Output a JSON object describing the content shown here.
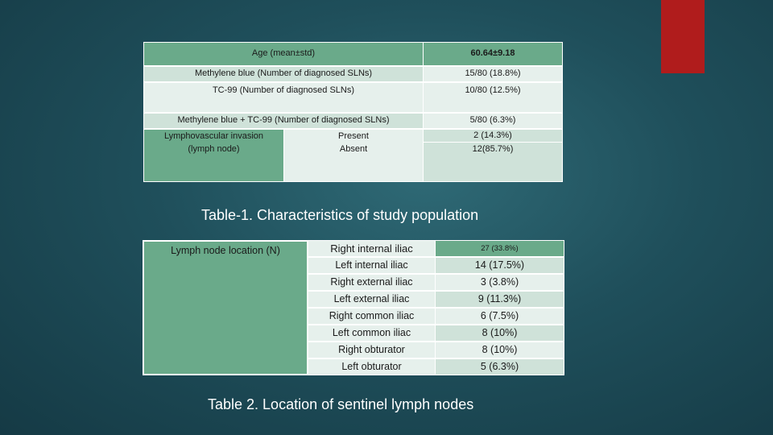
{
  "table1": {
    "rows": [
      {
        "label": "Age (mean±std)",
        "value": "60.64±9.18"
      },
      {
        "label": "Methylene blue (Number of diagnosed SLNs)",
        "value": "15/80 (18.8%)"
      },
      {
        "label": "TC-99 (Number of diagnosed SLNs)",
        "value": "10/80 (12.5%)"
      },
      {
        "label": "Methylene blue + TC-99 (Number of diagnosed SLNs)",
        "value": "5/80 (6.3%)"
      }
    ],
    "lvi": {
      "label_line1": "Lymphovascular invasion",
      "label_line2": "(lymph node)",
      "present_label": "Present",
      "present_value": "2 (14.3%)",
      "absent_label": "Absent",
      "absent_value": "12(85.7%)"
    },
    "caption": "Table-1. Characteristics of study population"
  },
  "table2": {
    "header": "Lymph node location (N)",
    "rows": [
      {
        "location": "Right internal iliac",
        "value": "27 (33.8%)"
      },
      {
        "location": "Left internal iliac",
        "value": "14 (17.5%)"
      },
      {
        "location": "Right external iliac",
        "value": "3 (3.8%)"
      },
      {
        "location": "Left external iliac",
        "value": "9 (11.3%)"
      },
      {
        "location": "Right common iliac",
        "value": "6 (7.5%)"
      },
      {
        "location": "Left common iliac",
        "value": "8 (10%)"
      },
      {
        "location": "Right obturator",
        "value": "8 (10%)"
      },
      {
        "location": "Left obturator",
        "value": "5 (6.3%)"
      }
    ],
    "caption": "Table 2. Location of sentinel lymph nodes"
  },
  "colors": {
    "accent": "#b01c1c",
    "table_dark": "#6aaa8a",
    "table_light": "#cfe2d9"
  }
}
